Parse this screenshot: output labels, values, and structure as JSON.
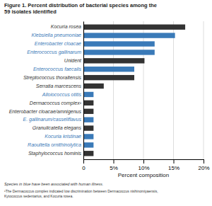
{
  "chart_data": {
    "type": "bar",
    "orientation": "horizontal",
    "title": "Figure 1. Percent distribution of bacterial species among the\n59 isolates identified",
    "categories": [
      "Staphylococcus hominis",
      "Raoultella ornithinolytica",
      "Kocuria kristinae",
      "Granulicatella elegans",
      "E. gallinarum/casseliflavus",
      "Enterobacter cloacae/amnigenus",
      "Dermacoccus complex¹",
      "Alloiococcus otitis",
      "Serratia marcescens",
      "Streptococcus thoraltensis",
      "Enterococcus faecalis",
      "Unident",
      "Enterococcus gallinarum",
      "Enterobacter cloacae",
      "Klebsiella pneumoniae",
      "Kocuria rosea"
    ],
    "values": [
      1.69,
      1.69,
      1.69,
      1.69,
      1.69,
      1.69,
      1.69,
      1.69,
      3.39,
      8.47,
      8.47,
      10.17,
      11.86,
      11.86,
      15.25,
      16.95
    ],
    "colors": [
      "#333333",
      "#3a7ab8",
      "#3a7ab8",
      "#333333",
      "#3a7ab8",
      "#333333",
      "#333333",
      "#3a7ab8",
      "#333333",
      "#333333",
      "#3a7ab8",
      "#333333",
      "#3a7ab8",
      "#3a7ab8",
      "#3a7ab8",
      "#333333"
    ],
    "xlabel": "Percent composition",
    "xlim": [
      0,
      20
    ],
    "xticks": [
      0,
      {
        "value": 5,
        "label": "5%"
      },
      {
        "value": 10,
        "label": "10%"
      },
      {
        "value": 15,
        "label": "15%"
      },
      {
        "value": 20,
        "label": "20%"
      }
    ],
    "grid": true,
    "annotations": [
      "Species in blue have been associated with human illness.",
      "¹The Dermacoccus complex indicated low discrimination between Dermacoccus nishinomiyaensis,\nKytococcus sedentarius, and Kocuria rosea."
    ]
  }
}
